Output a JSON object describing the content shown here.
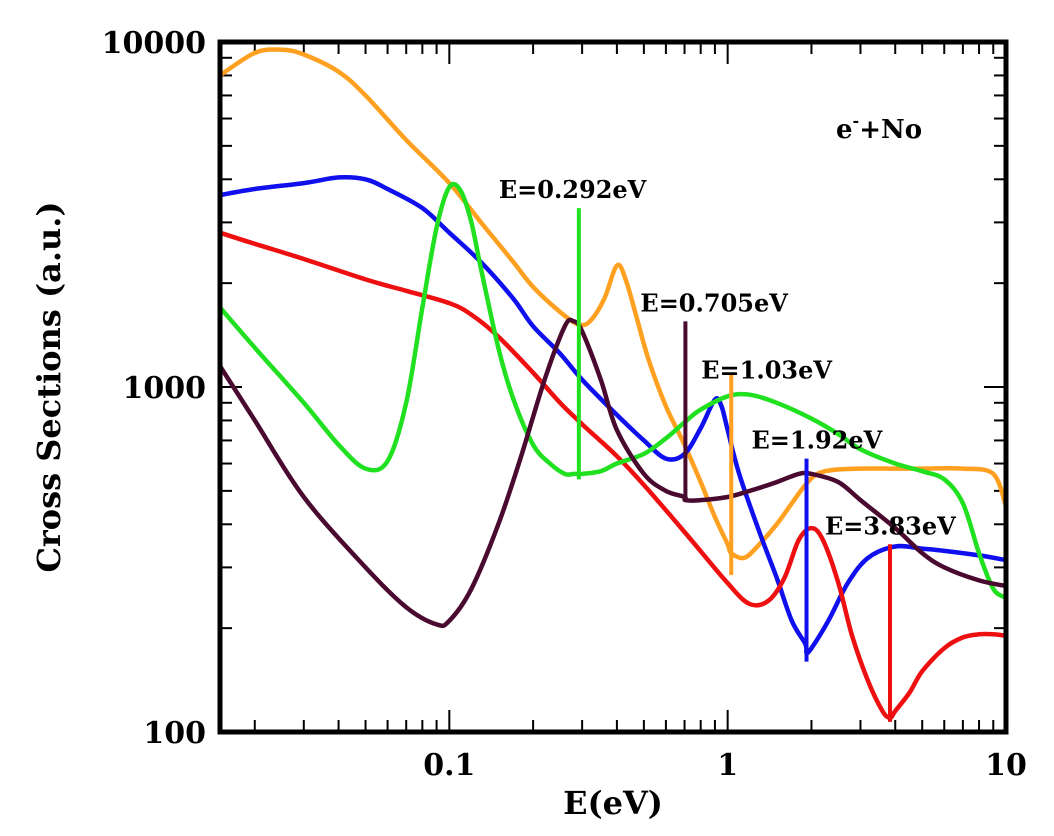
{
  "chart_data": {
    "type": "line",
    "title": "",
    "xlabel": "E(eV)",
    "ylabel": "Cross Sections (a.u.)",
    "xscale": "log",
    "yscale": "log",
    "xlim": [
      0.015,
      10
    ],
    "ylim": [
      100,
      10000
    ],
    "x_ticks": [
      {
        "value": 0.1,
        "label": "0.1"
      },
      {
        "value": 1,
        "label": "1"
      },
      {
        "value": 10,
        "label": "10"
      }
    ],
    "y_ticks": [
      {
        "value": 100,
        "label": "100"
      },
      {
        "value": 1000,
        "label": "1000"
      },
      {
        "value": 10000,
        "label": "10000"
      }
    ],
    "legend": {
      "base": "e",
      "sup": "-",
      "rest": "+No",
      "placement": "top-right"
    },
    "series": [
      {
        "name": "orange",
        "color": "#ffa020",
        "x": [
          0.015,
          0.02,
          0.025,
          0.03,
          0.04,
          0.05,
          0.07,
          0.1,
          0.13,
          0.17,
          0.2,
          0.25,
          0.29,
          0.32,
          0.36,
          0.4,
          0.43,
          0.47,
          0.52,
          0.6,
          0.7,
          0.8,
          0.9,
          1.0,
          1.03,
          1.15,
          1.3,
          1.5,
          1.7,
          1.9,
          2.1,
          2.4,
          3.0,
          4.0,
          5.0,
          7.0,
          9.0,
          10.0
        ],
        "y": [
          8000,
          9300,
          9500,
          9200,
          8200,
          7000,
          5200,
          3900,
          3000,
          2300,
          1950,
          1650,
          1520,
          1550,
          1800,
          2250,
          2050,
          1600,
          1200,
          880,
          680,
          530,
          420,
          350,
          330,
          320,
          350,
          400,
          460,
          520,
          560,
          575,
          580,
          580,
          580,
          580,
          560,
          450
        ]
      },
      {
        "name": "blue",
        "color": "#1010ee",
        "x": [
          0.015,
          0.02,
          0.03,
          0.04,
          0.05,
          0.06,
          0.08,
          0.1,
          0.13,
          0.17,
          0.2,
          0.25,
          0.3,
          0.4,
          0.5,
          0.6,
          0.7,
          0.8,
          0.9,
          0.95,
          1.0,
          1.1,
          1.3,
          1.5,
          1.7,
          1.9,
          1.92,
          2.0,
          2.3,
          2.7,
          3.2,
          4.0,
          5.0,
          6.0,
          8.0,
          10.0
        ],
        "y": [
          3600,
          3750,
          3900,
          4050,
          4000,
          3750,
          3300,
          2800,
          2300,
          1800,
          1500,
          1250,
          1050,
          830,
          700,
          620,
          640,
          760,
          920,
          880,
          750,
          560,
          380,
          280,
          210,
          180,
          170,
          175,
          210,
          270,
          320,
          345,
          340,
          335,
          325,
          315
        ]
      },
      {
        "name": "red",
        "color": "#ee1010",
        "x": [
          0.015,
          0.02,
          0.03,
          0.05,
          0.07,
          0.1,
          0.12,
          0.15,
          0.2,
          0.25,
          0.3,
          0.4,
          0.5,
          0.7,
          1.0,
          1.2,
          1.4,
          1.6,
          1.8,
          2.0,
          2.2,
          2.5,
          2.8,
          3.2,
          3.6,
          3.83,
          4.0,
          4.5,
          5.0,
          6.0,
          7.0,
          8.0,
          9.0,
          10.0
        ],
        "y": [
          2800,
          2600,
          2350,
          2050,
          1900,
          1750,
          1620,
          1400,
          1100,
          900,
          780,
          630,
          520,
          380,
          270,
          235,
          240,
          280,
          360,
          390,
          360,
          270,
          190,
          140,
          115,
          110,
          115,
          130,
          150,
          175,
          188,
          192,
          192,
          190
        ]
      },
      {
        "name": "green",
        "color": "#20e020",
        "x": [
          0.015,
          0.02,
          0.03,
          0.04,
          0.05,
          0.06,
          0.07,
          0.08,
          0.09,
          0.1,
          0.11,
          0.12,
          0.13,
          0.15,
          0.17,
          0.2,
          0.23,
          0.26,
          0.28,
          0.292,
          0.3,
          0.35,
          0.4,
          0.5,
          0.6,
          0.7,
          0.8,
          1.0,
          1.2,
          1.5,
          2.0,
          2.5,
          3.0,
          4.0,
          5.0,
          6.0,
          7.0,
          8.0,
          9.0,
          10.0
        ],
        "y": [
          1700,
          1300,
          900,
          680,
          580,
          610,
          900,
          1700,
          2900,
          3800,
          3700,
          3000,
          2200,
          1300,
          920,
          680,
          600,
          560,
          560,
          560,
          560,
          570,
          600,
          640,
          710,
          790,
          860,
          940,
          950,
          900,
          810,
          730,
          660,
          600,
          570,
          540,
          460,
          330,
          260,
          245
        ]
      },
      {
        "name": "purple",
        "color": "#4a0a30",
        "x": [
          0.015,
          0.02,
          0.03,
          0.05,
          0.07,
          0.09,
          0.1,
          0.12,
          0.15,
          0.18,
          0.22,
          0.26,
          0.28,
          0.3,
          0.35,
          0.4,
          0.5,
          0.6,
          0.7,
          0.705,
          0.8,
          1.0,
          1.2,
          1.5,
          1.8,
          2.0,
          2.5,
          3.0,
          4.0,
          5.0,
          6.0,
          8.0,
          10.0
        ],
        "y": [
          1150,
          800,
          480,
          300,
          230,
          205,
          210,
          260,
          400,
          620,
          1050,
          1500,
          1550,
          1450,
          1050,
          750,
          560,
          500,
          480,
          470,
          470,
          480,
          500,
          530,
          560,
          560,
          530,
          470,
          390,
          330,
          300,
          275,
          265
        ]
      }
    ],
    "spikes": [
      {
        "label": "E=0.292eV",
        "x": 0.292,
        "y_low": 540,
        "y_high": 3300,
        "color": "#20e020"
      },
      {
        "label": "E=0.705eV",
        "x": 0.705,
        "y_low": 470,
        "y_high": 1550,
        "color": "#4a0a30"
      },
      {
        "label": "E=1.03eV",
        "x": 1.03,
        "y_low": 285,
        "y_high": 1100,
        "color": "#ffa020"
      },
      {
        "label": "E=1.92eV",
        "x": 1.92,
        "y_low": 160,
        "y_high": 620,
        "color": "#1010ee"
      },
      {
        "label": "E=3.83eV",
        "x": 3.83,
        "y_low": 107,
        "y_high": 350,
        "color": "#ee1010"
      }
    ]
  }
}
